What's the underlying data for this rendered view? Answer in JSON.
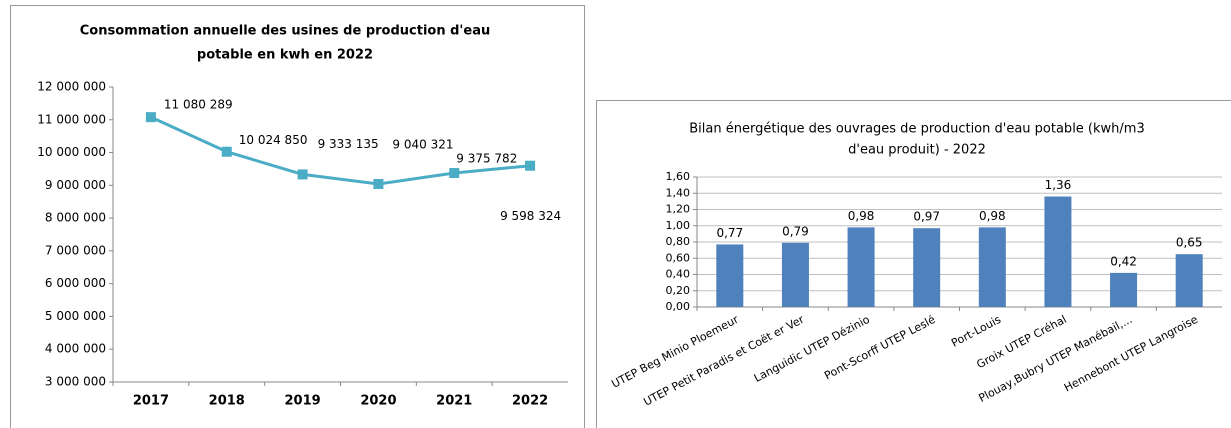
{
  "chart_data": [
    {
      "type": "line",
      "title": [
        "Consommation  annuelle des usines de production d'eau",
        "potable en kwh en 2022"
      ],
      "categories": [
        "2017",
        "2018",
        "2019",
        "2020",
        "2021",
        "2022"
      ],
      "series": [
        {
          "color": "#4bacc6",
          "values": [
            11080289,
            10024850,
            9333135,
            9040321,
            9375782,
            9598324
          ],
          "value_labels": [
            "11 080 289",
            "10 024 850",
            "9 333 135",
            "9 040 321",
            "9 375 782",
            "9 598 324"
          ]
        }
      ],
      "ylim": [
        3000000,
        12000000
      ],
      "yticks": [
        {
          "value": 3000000,
          "label": "3 000 000"
        },
        {
          "value": 4000000,
          "label": "4 000 000"
        },
        {
          "value": 5000000,
          "label": "5 000 000"
        },
        {
          "value": 6000000,
          "label": "6 000 000"
        },
        {
          "value": 7000000,
          "label": "7 000 000"
        },
        {
          "value": 8000000,
          "label": "8 000 000"
        },
        {
          "value": 9000000,
          "label": "9 000 000"
        },
        {
          "value": 10000000,
          "label": "10 000 000"
        },
        {
          "value": 11000000,
          "label": "11 000 000"
        },
        {
          "value": 12000000,
          "label": "12 000 000"
        }
      ],
      "grid": false
    },
    {
      "type": "bar",
      "title": [
        "Bilan énergétique des ouvrages de production d'eau potable (kwh/m3",
        "d'eau produit) - 2022"
      ],
      "categories": [
        "UTEP Beg Minio Ploemeur",
        "UTEP Petit Paradis et Coët er Ver",
        "Languidic UTEP Dézinio",
        "Pont-Scorff UTEP Leslé",
        "Port-Louis",
        "Groix UTEP Créhal",
        "Plouay,Bubry UTEP Manébail,...",
        "Hennebont UTEP Langroise"
      ],
      "series": [
        {
          "color": "#4f81bd",
          "values": [
            0.77,
            0.79,
            0.98,
            0.97,
            0.98,
            1.36,
            0.42,
            0.65
          ],
          "value_labels": [
            "0,77",
            "0,79",
            "0,98",
            "0,97",
            "0,98",
            "1,36",
            "0,42",
            "0,65"
          ]
        }
      ],
      "ylim": [
        0,
        1.6
      ],
      "yticks": [
        {
          "value": 0,
          "label": "0,00"
        },
        {
          "value": 0.2,
          "label": "0,20"
        },
        {
          "value": 0.4,
          "label": "0,40"
        },
        {
          "value": 0.6,
          "label": "0,60"
        },
        {
          "value": 0.8,
          "label": "0,80"
        },
        {
          "value": 1,
          "label": "1,00"
        },
        {
          "value": 1.2,
          "label": "1,20"
        },
        {
          "value": 1.4,
          "label": "1,40"
        },
        {
          "value": 1.6,
          "label": "1,60"
        }
      ],
      "grid": true
    }
  ]
}
